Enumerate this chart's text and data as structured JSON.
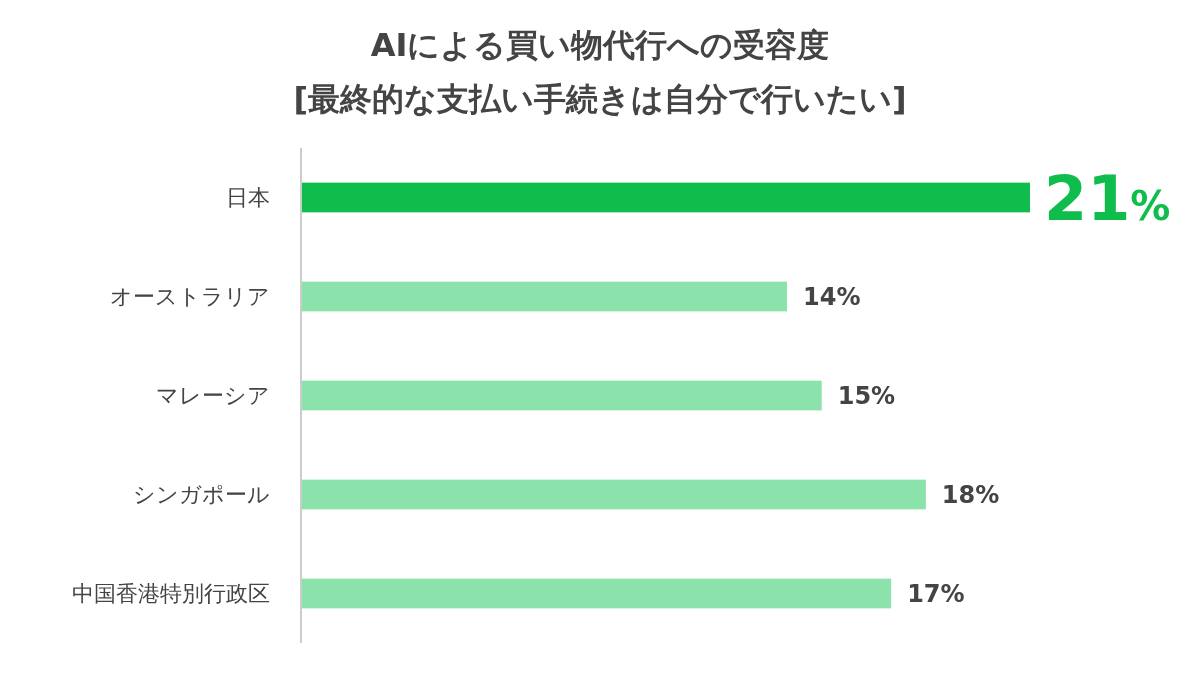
{
  "chart_data": {
    "type": "bar",
    "orientation": "horizontal",
    "title": "AIによる買い物代行への受容度",
    "subtitle": "[最終的な支払い手続きは自分で行いたい]",
    "categories": [
      "日本",
      "オーストラリア",
      "マレーシア",
      "シンガポール",
      "中国香港特別行政区"
    ],
    "values": [
      21,
      14,
      15,
      18,
      17
    ],
    "colors": [
      "#0fbd4c",
      "#8be2ab",
      "#8be2ab",
      "#8be2ab",
      "#8be2ab"
    ],
    "value_labels": [
      "21%",
      "14%",
      "15%",
      "18%",
      "17%"
    ]
  }
}
